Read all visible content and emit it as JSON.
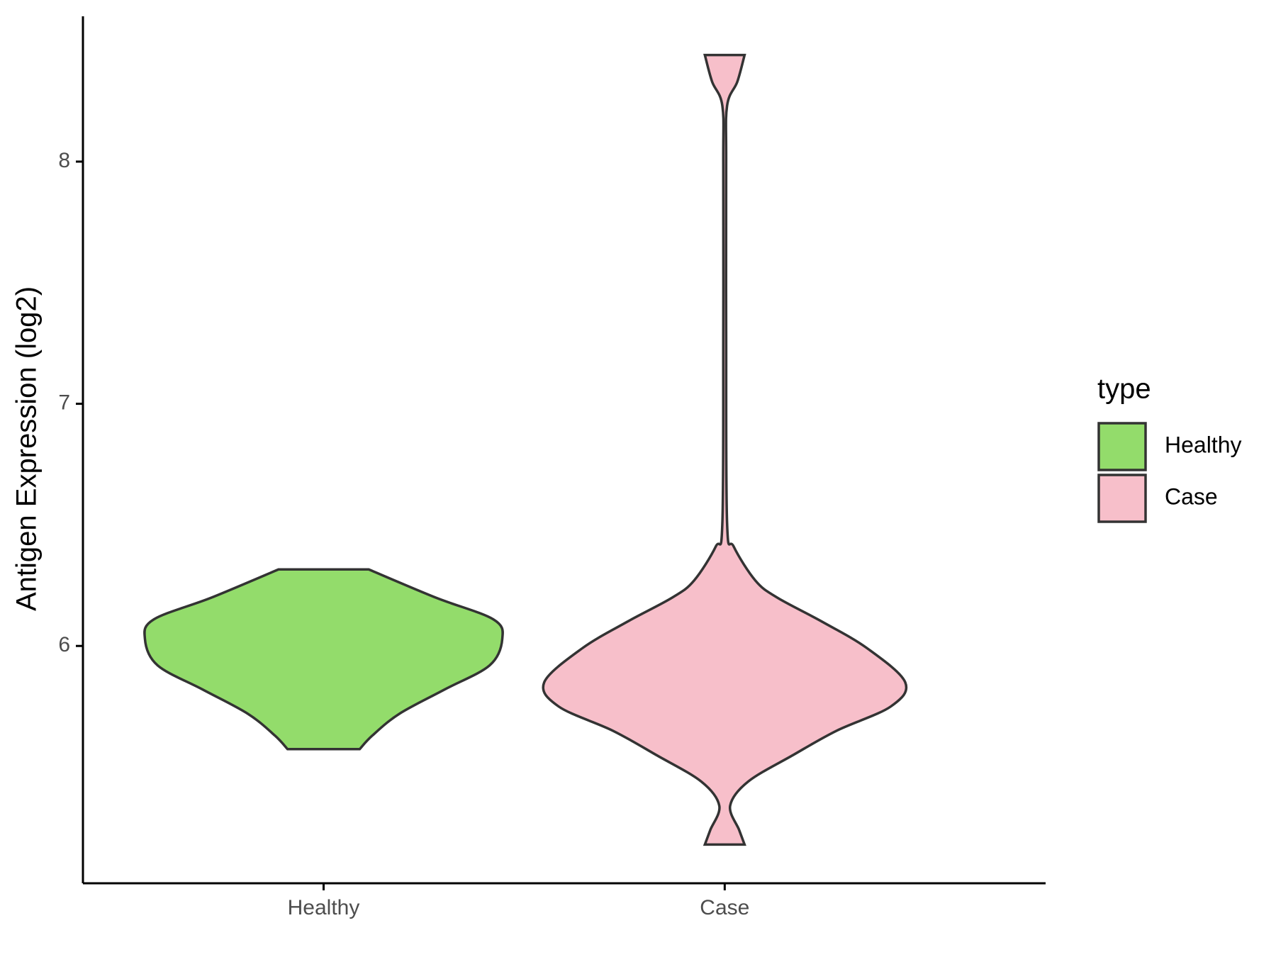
{
  "chart_data": {
    "type": "violin",
    "y_label": "Antigen Expression (log2)",
    "categories": [
      "Healthy",
      "Case"
    ],
    "ylim": [
      5.02,
      8.6
    ],
    "yticks": [
      6,
      7,
      8
    ],
    "legend_title": "type",
    "legend_position": "right",
    "series": [
      {
        "name": "Healthy",
        "color": "#93dc6b",
        "y": [
          6.316,
          6.2,
          6.11,
          6.03,
          5.92,
          5.82,
          5.72,
          5.63,
          5.574
        ],
        "density": [
          0.25,
          0.62,
          0.94,
          0.99,
          0.92,
          0.67,
          0.42,
          0.27,
          0.2
        ]
      },
      {
        "name": "Case",
        "color": "#f7bfca",
        "y": [
          8.44,
          8.33,
          8.23,
          7.99,
          7.3,
          6.51,
          6.41,
          6.27,
          6.2,
          6.1,
          5.99,
          5.85,
          5.75,
          5.65,
          5.55,
          5.44,
          5.34,
          5.24,
          5.18
        ],
        "density": [
          0.11,
          0.07,
          0.013,
          0.008,
          0.008,
          0.013,
          0.05,
          0.17,
          0.29,
          0.54,
          0.79,
          1,
          0.92,
          0.62,
          0.38,
          0.13,
          0.03,
          0.08,
          0.11
        ]
      }
    ]
  }
}
